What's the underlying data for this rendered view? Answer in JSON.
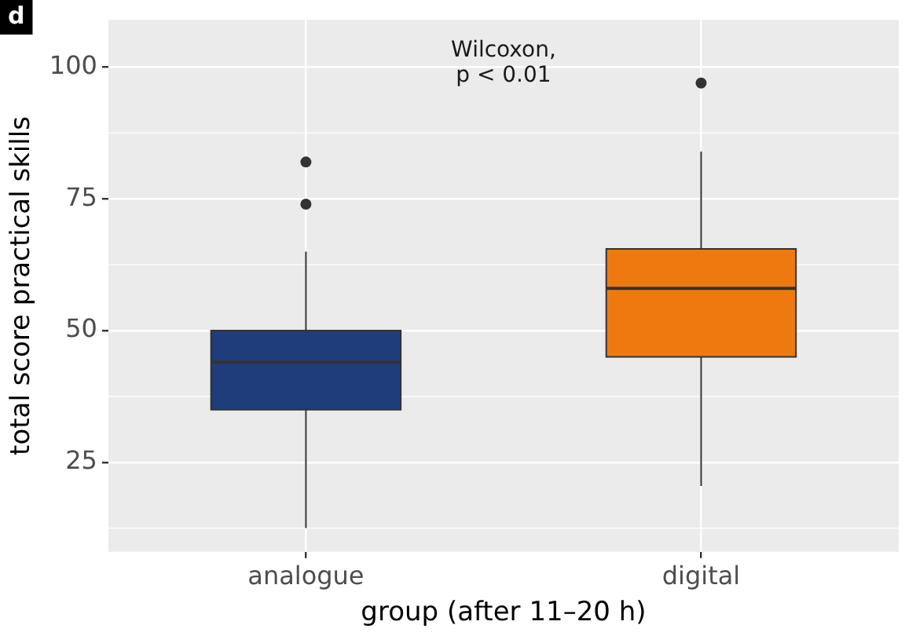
{
  "chart_data": {
    "type": "box",
    "title": "d",
    "xlabel": "group (after 11–20 h)",
    "ylabel": "total score practical skills",
    "categories": [
      "analogue",
      "digital"
    ],
    "colors": [
      "#1f3d7a",
      "#ee7a0f"
    ],
    "boxes": [
      {
        "low": 12.5,
        "q1": 35,
        "median": 44,
        "q3": 50,
        "high": 65,
        "outliers": [
          74,
          82
        ]
      },
      {
        "low": 20.5,
        "q1": 45,
        "median": 58,
        "q3": 65.5,
        "high": 84,
        "outliers": [
          97
        ]
      }
    ],
    "ylim": [
      8,
      109
    ],
    "yticks": [
      25,
      50,
      75,
      100
    ],
    "grid": true,
    "legend": false,
    "annotations": [
      "Wilcoxon,\np < 0.01"
    ]
  }
}
